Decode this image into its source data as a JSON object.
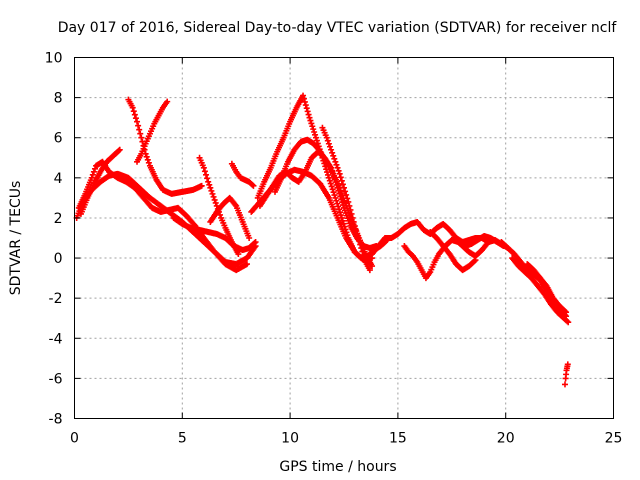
{
  "chart_data": {
    "type": "scatter",
    "title": "Day 017 of 2016, Sidereal Day-to-day VTEC variation (SDTVAR) for receiver nclf",
    "xlabel": "GPS time / hours",
    "ylabel": "SDTVAR / TECUs",
    "xlim": [
      0,
      25
    ],
    "ylim": [
      -8,
      10
    ],
    "xticks": [
      0,
      5,
      10,
      15,
      20,
      25
    ],
    "yticks": [
      -8,
      -6,
      -4,
      -2,
      0,
      2,
      4,
      6,
      8,
      10
    ],
    "grid": true,
    "marker": "plus",
    "color": "#ff0000",
    "series": [
      {
        "name": "track-1",
        "x": [
          0.1,
          0.4,
          0.8,
          1.2,
          1.6,
          2.0,
          2.5,
          3.0,
          3.5,
          4.0,
          4.5,
          5.0,
          5.5,
          6.0,
          6.5,
          7.0,
          7.5,
          8.0,
          8.4
        ],
        "y": [
          2.0,
          2.8,
          3.4,
          3.8,
          4.1,
          4.2,
          4.0,
          3.5,
          3.0,
          2.6,
          2.2,
          1.8,
          1.3,
          0.8,
          0.3,
          -0.2,
          -0.3,
          0.0,
          0.6
        ]
      },
      {
        "name": "track-2",
        "x": [
          0.2,
          0.5,
          0.8,
          1.0,
          1.3,
          1.6,
          2.0,
          2.4,
          2.8,
          3.2,
          3.6,
          4.0,
          4.4,
          4.8,
          5.2,
          5.6,
          6.0,
          6.5,
          7.0,
          7.5,
          8.0
        ],
        "y": [
          2.5,
          3.2,
          4.0,
          4.6,
          4.8,
          4.3,
          4.0,
          3.8,
          3.5,
          3.0,
          2.5,
          2.3,
          2.4,
          2.5,
          2.1,
          1.6,
          1.0,
          0.3,
          -0.3,
          -0.6,
          -0.3
        ]
      },
      {
        "name": "track-3",
        "x": [
          0.3,
          0.6,
          0.9,
          1.2,
          1.5,
          1.8,
          2.1
        ],
        "y": [
          2.2,
          3.0,
          3.7,
          4.3,
          4.8,
          5.1,
          5.4
        ]
      },
      {
        "name": "track-4",
        "x": [
          2.5,
          2.7,
          2.9,
          3.1,
          3.3,
          3.5,
          3.8,
          4.1,
          4.5,
          5.0,
          5.5,
          5.9
        ],
        "y": [
          7.9,
          7.5,
          6.8,
          6.0,
          5.2,
          4.6,
          3.9,
          3.4,
          3.2,
          3.3,
          3.4,
          3.6
        ]
      },
      {
        "name": "track-5",
        "x": [
          2.9,
          3.1,
          3.3,
          3.5,
          3.7,
          3.9,
          4.1,
          4.3
        ],
        "y": [
          4.8,
          5.2,
          5.7,
          6.2,
          6.7,
          7.1,
          7.5,
          7.8
        ]
      },
      {
        "name": "track-6",
        "x": [
          4.6,
          5.0,
          5.4,
          5.8,
          6.2,
          6.6,
          7.0,
          7.4,
          7.8,
          8.1,
          8.4
        ],
        "y": [
          2.0,
          1.7,
          1.5,
          1.4,
          1.3,
          1.2,
          1.0,
          0.6,
          0.4,
          0.5,
          0.8
        ]
      },
      {
        "name": "track-7",
        "x": [
          5.8,
          6.0,
          6.2,
          6.4,
          6.6,
          6.8,
          7.0,
          7.3,
          7.6
        ],
        "y": [
          5.0,
          4.5,
          3.8,
          3.2,
          2.6,
          2.0,
          1.5,
          0.8,
          0.2
        ]
      },
      {
        "name": "track-8",
        "x": [
          6.3,
          6.6,
          6.9,
          7.2,
          7.5,
          7.8,
          8.1
        ],
        "y": [
          1.8,
          2.3,
          2.7,
          3.0,
          2.6,
          1.8,
          1.0
        ]
      },
      {
        "name": "track-9",
        "x": [
          7.3,
          7.5,
          7.7,
          7.9,
          8.1,
          8.3
        ],
        "y": [
          4.7,
          4.3,
          4.0,
          3.9,
          3.8,
          3.6
        ]
      },
      {
        "name": "track-10",
        "x": [
          8.5,
          8.8,
          9.1,
          9.4,
          9.7,
          10.0,
          10.3,
          10.6,
          10.9,
          11.2,
          11.5,
          11.8,
          12.1,
          12.4,
          12.7,
          13.0,
          13.3,
          13.6,
          13.9,
          14.2,
          14.5
        ],
        "y": [
          3.0,
          3.8,
          4.5,
          5.3,
          6.0,
          6.8,
          7.5,
          8.1,
          7.0,
          6.0,
          5.0,
          4.0,
          3.0,
          2.0,
          1.0,
          0.3,
          0.0,
          0.1,
          0.4,
          0.6,
          0.9
        ]
      },
      {
        "name": "track-11",
        "x": [
          8.6,
          8.9,
          9.2,
          9.5,
          9.8,
          10.1,
          10.4,
          10.7,
          11.0,
          11.3,
          11.6,
          11.9,
          12.2,
          12.5,
          12.8,
          13.1,
          13.4,
          13.7,
          14.0
        ],
        "y": [
          2.6,
          3.1,
          3.6,
          4.1,
          4.3,
          4.0,
          3.8,
          4.3,
          5.0,
          5.3,
          5.0,
          4.5,
          3.5,
          2.5,
          1.6,
          1.0,
          0.6,
          0.5,
          0.6
        ]
      },
      {
        "name": "track-12",
        "x": [
          8.2,
          8.6,
          9.0,
          9.4,
          9.8,
          10.2,
          10.6,
          11.0,
          11.4,
          11.8,
          12.2,
          12.6,
          13.0,
          13.4,
          13.8
        ],
        "y": [
          2.3,
          2.8,
          3.3,
          3.8,
          4.2,
          4.4,
          4.3,
          4.1,
          3.7,
          3.0,
          2.0,
          1.0,
          0.3,
          -0.1,
          0.0
        ]
      },
      {
        "name": "track-13",
        "x": [
          9.3,
          9.6,
          9.9,
          10.2,
          10.5,
          10.8,
          11.1,
          11.4,
          11.7,
          12.0,
          12.3,
          12.6,
          12.9,
          13.2,
          13.5,
          13.8
        ],
        "y": [
          3.3,
          4.0,
          4.8,
          5.4,
          5.8,
          5.9,
          5.7,
          5.3,
          4.8,
          4.2,
          3.5,
          2.6,
          1.8,
          1.0,
          0.2,
          -0.4
        ]
      },
      {
        "name": "track-14",
        "x": [
          11.5,
          11.7,
          11.9,
          12.1,
          12.3,
          12.5,
          12.7,
          12.9,
          13.1,
          13.3,
          13.5,
          13.7
        ],
        "y": [
          6.5,
          6.0,
          5.4,
          4.8,
          4.2,
          3.5,
          2.8,
          2.0,
          1.2,
          0.5,
          -0.2,
          -0.6
        ]
      },
      {
        "name": "track-15",
        "x": [
          13.8,
          14.1,
          14.4,
          14.7,
          15.0,
          15.3,
          15.6,
          15.9,
          16.2,
          16.5,
          16.8,
          17.1,
          17.4,
          17.7,
          18.0,
          18.3,
          18.6,
          18.9,
          19.2,
          19.5,
          19.8,
          20.1
        ],
        "y": [
          0.2,
          0.6,
          1.0,
          1.0,
          1.2,
          1.5,
          1.7,
          1.8,
          1.4,
          1.2,
          1.5,
          1.7,
          1.4,
          1.0,
          0.8,
          0.9,
          1.0,
          1.0,
          0.8,
          0.9,
          0.7,
          0.5
        ]
      },
      {
        "name": "track-16",
        "x": [
          15.3,
          15.5,
          15.7,
          15.9,
          16.1,
          16.3,
          16.5,
          16.7,
          16.9,
          17.2,
          17.5,
          17.8,
          18.1,
          18.4,
          18.7,
          19.0,
          19.3,
          19.6,
          19.9
        ],
        "y": [
          0.6,
          0.3,
          0.1,
          -0.2,
          -0.6,
          -1.0,
          -0.7,
          -0.2,
          0.2,
          0.6,
          0.9,
          0.8,
          0.6,
          0.7,
          0.9,
          1.1,
          1.0,
          0.8,
          0.6
        ]
      },
      {
        "name": "track-17",
        "x": [
          16.5,
          16.8,
          17.1,
          17.4,
          17.7,
          18.0,
          18.3,
          18.6
        ],
        "y": [
          1.3,
          1.0,
          0.6,
          0.2,
          -0.3,
          -0.6,
          -0.4,
          -0.1
        ]
      },
      {
        "name": "track-18",
        "x": [
          17.7,
          18.0,
          18.3,
          18.6,
          18.9,
          19.2,
          19.5
        ],
        "y": [
          0.9,
          0.6,
          0.3,
          0.1,
          0.4,
          0.8,
          0.9
        ]
      },
      {
        "name": "track-19",
        "x": [
          19.8,
          20.1,
          20.4,
          20.7,
          21.0,
          21.3,
          21.6,
          21.9,
          22.2,
          22.5,
          22.8
        ],
        "y": [
          0.8,
          0.5,
          0.2,
          -0.2,
          -0.6,
          -0.8,
          -1.1,
          -1.6,
          -2.1,
          -2.5,
          -2.9
        ]
      },
      {
        "name": "track-20",
        "x": [
          20.3,
          20.6,
          20.9,
          21.2,
          21.5,
          21.8,
          22.1,
          22.4,
          22.7,
          22.9
        ],
        "y": [
          0.0,
          -0.4,
          -0.7,
          -1.0,
          -1.4,
          -1.8,
          -2.3,
          -2.7,
          -3.0,
          -3.2
        ]
      },
      {
        "name": "track-21",
        "x": [
          21.0,
          21.3,
          21.6,
          21.9,
          22.2,
          22.5,
          22.8
        ],
        "y": [
          -0.3,
          -0.6,
          -1.0,
          -1.4,
          -2.0,
          -2.4,
          -2.7
        ]
      },
      {
        "name": "track-22",
        "x": [
          22.75,
          22.78,
          22.8,
          22.82,
          22.84,
          22.86,
          22.88
        ],
        "y": [
          -6.3,
          -6.0,
          -5.8,
          -5.6,
          -5.5,
          -5.4,
          -5.3
        ]
      }
    ]
  }
}
